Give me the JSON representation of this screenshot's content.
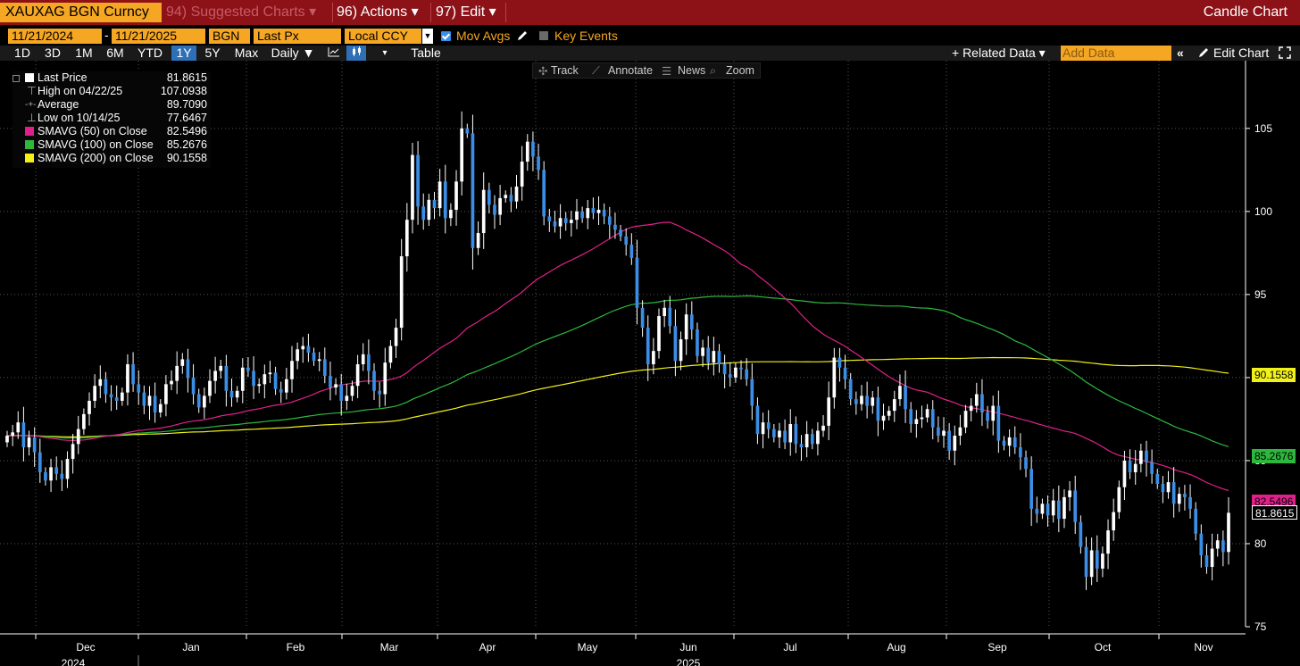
{
  "topbar": {
    "ticker": "XAUXAG BGN Curncy",
    "suggested": "94) Suggested Charts ▾",
    "actions": "96) Actions ▾",
    "edit": "97) Edit ▾",
    "chart_type": "Candle Chart"
  },
  "controls": {
    "start_date": "11/21/2024",
    "end_date": "11/21/2025",
    "source": "BGN",
    "field": "Last Px",
    "currency": "Local CCY",
    "mov_avgs_label": "Mov Avgs",
    "key_events_label": "Key Events",
    "date_sep": "-"
  },
  "range_bar": {
    "ranges": [
      "1D",
      "3D",
      "1M",
      "6M",
      "YTD",
      "1Y",
      "5Y",
      "Max"
    ],
    "active": "1Y",
    "period": "Daily ▼",
    "table_label": "Table",
    "related_data": "+ Related Data ▾",
    "add_data_placeholder": "Add Data",
    "edit_chart": "Edit Chart",
    "collapse": "«"
  },
  "tools": {
    "track": "Track",
    "annotate": "Annotate",
    "news": "News",
    "zoom": "Zoom"
  },
  "legend": [
    {
      "label": "Last Price",
      "value": "81.8615",
      "color": "#ffffff"
    },
    {
      "label": "High on 04/22/25",
      "value": "107.0938",
      "color": "#aaaaaa"
    },
    {
      "label": "Average",
      "value": "89.7090",
      "color": "#aaaaaa"
    },
    {
      "label": "Low on 10/14/25",
      "value": "77.6467",
      "color": "#aaaaaa"
    },
    {
      "label": "SMAVG (50)  on Close",
      "value": "82.5496",
      "color": "#e0208a"
    },
    {
      "label": "SMAVG (100)  on Close",
      "value": "85.2676",
      "color": "#2db83d"
    },
    {
      "label": "SMAVG (200)  on Close",
      "value": "90.1558",
      "color": "#f1f11a"
    }
  ],
  "colors": {
    "up": "#ffffff",
    "down": "#3b8ee6",
    "sma50": "#e0208a",
    "sma100": "#2db83d",
    "sma200": "#f1f11a",
    "grid": "#555555",
    "accent": "#f5a623",
    "topbar": "#8c1218"
  },
  "chart_data": {
    "type": "candlestick",
    "ylim": [
      75,
      108
    ],
    "yticks": [
      75,
      80,
      85,
      90,
      95,
      100,
      105
    ],
    "y_label_boxes": [
      {
        "label": "90.1558",
        "value": 90.1558,
        "color": "#f1f11a"
      },
      {
        "label": "85.2676",
        "value": 85.2676,
        "color": "#2db83d"
      },
      {
        "label": "82.5496",
        "value": 82.5496,
        "color": "#e0208a"
      },
      {
        "label": "81.8615",
        "value": 81.8615,
        "color": "#ffffff"
      }
    ],
    "x_months": [
      "Dec",
      "Jan",
      "Feb",
      "Mar",
      "Apr",
      "May",
      "Jun",
      "Jul",
      "Aug",
      "Sep",
      "Oct",
      "Nov"
    ],
    "x_years": [
      "2024",
      "2025"
    ],
    "close_path": [
      86.5,
      86.7,
      87.3,
      85.8,
      86.4,
      85.5,
      84.3,
      83.8,
      84.6,
      84.2,
      83.9,
      85.1,
      86.0,
      86.9,
      87.8,
      88.6,
      89.5,
      89.9,
      89.0,
      88.8,
      88.6,
      89.1,
      90.8,
      89.6,
      89.1,
      88.3,
      88.9,
      87.9,
      88.4,
      89.6,
      89.8,
      90.7,
      91.1,
      90.0,
      89.0,
      88.2,
      88.9,
      89.8,
      90.4,
      90.7,
      89.2,
      88.8,
      89.2,
      90.6,
      90.4,
      89.5,
      89.6,
      90.2,
      90.3,
      89.3,
      89.1,
      89.9,
      91.0,
      91.7,
      91.9,
      91.5,
      91.0,
      91.1,
      90.1,
      89.4,
      89.6,
      88.6,
      88.9,
      89.5,
      90.8,
      91.4,
      90.4,
      89.2,
      89.0,
      90.9,
      91.9,
      93.0,
      97.3,
      99.5,
      103.4,
      100.3,
      99.5,
      100.7,
      100.2,
      101.8,
      99.6,
      100.1,
      101.8,
      105.0,
      104.7,
      97.8,
      98.7,
      101.3,
      100.4,
      99.8,
      100.8,
      101.0,
      100.6,
      101.5,
      103.0,
      104.2,
      103.3,
      102.5,
      99.7,
      99.4,
      99.1,
      99.6,
      99.3,
      99.5,
      100.0,
      99.6,
      100.2,
      99.9,
      100.1,
      99.7,
      99.2,
      98.9,
      98.5,
      98.0,
      97.2,
      94.2,
      93.0,
      90.8,
      91.6,
      93.7,
      94.2,
      93.1,
      91.0,
      92.3,
      93.8,
      92.9,
      91.3,
      91.8,
      90.9,
      91.6,
      90.8,
      90.2,
      90.0,
      90.6,
      90.5,
      89.9,
      88.3,
      86.6,
      87.3,
      86.9,
      86.4,
      86.8,
      86.1,
      87.2,
      86.0,
      85.8,
      86.6,
      86.0,
      86.8,
      87.1,
      88.8,
      91.2,
      90.6,
      89.9,
      88.7,
      88.4,
      88.9,
      88.3,
      88.8,
      87.4,
      87.7,
      88.0,
      88.7,
      89.5,
      88.1,
      87.2,
      87.5,
      87.6,
      88.1,
      87.0,
      86.5,
      86.8,
      85.6,
      86.5,
      87.0,
      88.0,
      88.3,
      89.0,
      87.9,
      87.4,
      88.3,
      86.2,
      85.9,
      86.4,
      85.8,
      85.2,
      84.5,
      82.1,
      81.8,
      82.4,
      81.7,
      82.6,
      81.5,
      82.8,
      83.2,
      81.3,
      79.8,
      78.0,
      79.6,
      78.5,
      79.4,
      80.8,
      81.9,
      83.4,
      85.0,
      84.3,
      84.8,
      85.6,
      84.9,
      84.2,
      83.6,
      83.1,
      83.7,
      82.4,
      83.0,
      82.8,
      82.1,
      80.6,
      79.3,
      78.6,
      79.7,
      80.2,
      79.5,
      81.86
    ]
  }
}
